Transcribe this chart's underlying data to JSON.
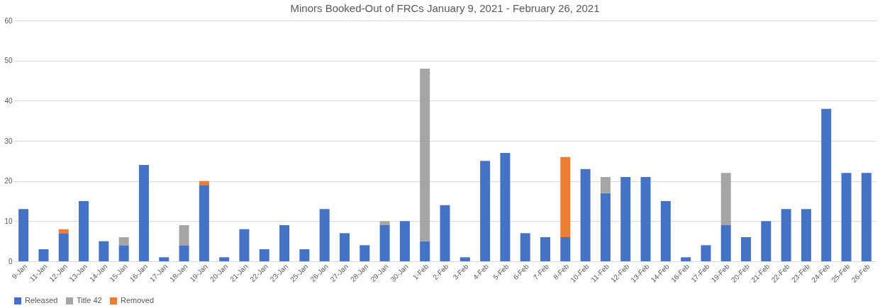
{
  "chart_data": {
    "type": "bar",
    "title": "Minors Booked-Out of FRCs January 9, 2021 - February 26, 2021",
    "stacked": true,
    "categories": [
      "9-Jan",
      "11-Jan",
      "12-Jan",
      "13-Jan",
      "14-Jan",
      "15-Jan",
      "16-Jan",
      "17-Jan",
      "18-Jan",
      "19-Jan",
      "20-Jan",
      "21-Jan",
      "22-Jan",
      "23-Jan",
      "25-Jan",
      "26-Jan",
      "27-Jan",
      "28-Jan",
      "29-Jan",
      "30-Jan",
      "1-Feb",
      "2-Feb",
      "3-Feb",
      "4-Feb",
      "5-Feb",
      "6-Feb",
      "7-Feb",
      "8-Feb",
      "10-Feb",
      "11-Feb",
      "12-Feb",
      "13-Feb",
      "14-Feb",
      "16-Feb",
      "17-Feb",
      "19-Feb",
      "20-Feb",
      "21-Feb",
      "22-Feb",
      "23-Feb",
      "24-Feb",
      "25-Feb",
      "26-Feb"
    ],
    "series": [
      {
        "name": "Released",
        "color": "#4472c4",
        "values": [
          13,
          3,
          7,
          15,
          5,
          4,
          24,
          1,
          4,
          19,
          1,
          8,
          3,
          9,
          3,
          13,
          7,
          4,
          9,
          10,
          5,
          14,
          1,
          25,
          27,
          7,
          6,
          6,
          23,
          17,
          21,
          21,
          15,
          1,
          4,
          9,
          6,
          10,
          13,
          13,
          38,
          22,
          22
        ]
      },
      {
        "name": "Title 42",
        "color": "#a5a5a5",
        "values": [
          null,
          null,
          null,
          null,
          null,
          2,
          null,
          null,
          5,
          null,
          null,
          null,
          null,
          null,
          null,
          null,
          null,
          null,
          1,
          null,
          43,
          null,
          null,
          null,
          null,
          null,
          null,
          null,
          null,
          4,
          null,
          null,
          null,
          null,
          null,
          13,
          null,
          null,
          null,
          null,
          null,
          null,
          null
        ]
      },
      {
        "name": "Removed",
        "color": "#ed7d31",
        "values": [
          null,
          null,
          1,
          null,
          null,
          null,
          null,
          null,
          null,
          1,
          null,
          null,
          null,
          null,
          null,
          null,
          null,
          null,
          null,
          null,
          null,
          null,
          null,
          null,
          null,
          null,
          null,
          20,
          null,
          null,
          null,
          null,
          null,
          null,
          null,
          null,
          null,
          null,
          null,
          null,
          null,
          null,
          null
        ]
      }
    ],
    "ylim": [
      0,
      60
    ],
    "yticks": [
      0,
      10,
      20,
      30,
      40,
      50,
      60
    ],
    "grid": "y",
    "legend": "bottom"
  }
}
